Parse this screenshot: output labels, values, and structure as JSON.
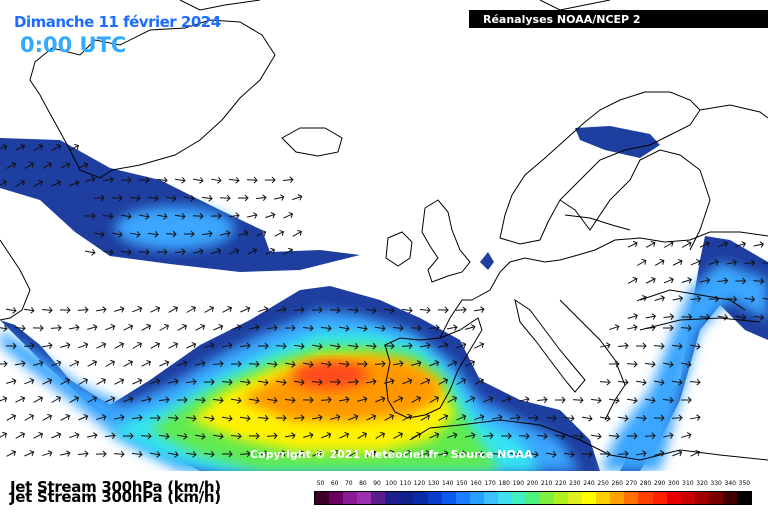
{
  "header": {
    "date": "Dimanche 11 février 2024",
    "time": "0:00 UTC",
    "source": "Réanalyses NOAA/NCEP 2"
  },
  "map": {
    "variable": "Jet Stream 300hPa (km/h)",
    "copyright": "Copyright © 2021 Meteociel.fr - Source NOAA",
    "wind_direction": "west-to-east"
  },
  "legend": {
    "values": [
      "50",
      "60",
      "70",
      "80",
      "90",
      "100",
      "110",
      "120",
      "130",
      "140",
      "150",
      "160",
      "170",
      "180",
      "190",
      "200",
      "210",
      "220",
      "230",
      "240",
      "250",
      "260",
      "270",
      "280",
      "290",
      "300",
      "310",
      "320",
      "330",
      "340",
      "350"
    ],
    "colors": [
      "#3c0028",
      "#6a0060",
      "#8c1a96",
      "#9a2fb4",
      "#5a1e8c",
      "#1e1e8c",
      "#10208c",
      "#0a2ca8",
      "#0a3ccc",
      "#0a5aee",
      "#1b7dff",
      "#2aa0ff",
      "#3cc0ff",
      "#40e0f0",
      "#40f0c0",
      "#50f080",
      "#80f040",
      "#b0f020",
      "#e0f020",
      "#ffff00",
      "#ffd000",
      "#ffa000",
      "#ff7000",
      "#ff4000",
      "#ff2000",
      "#e80000",
      "#c80000",
      "#a00000",
      "#780000",
      "#400000",
      "#000000"
    ],
    "map_colors": {
      "slow": "#1e3ea0",
      "mid": "#3aa6ff",
      "cyan": "#35e4f0",
      "green": "#60ea50",
      "yellow": "#fff200",
      "orange": "#ff9800",
      "red": "#ff4a1a",
      "coast": "#000000"
    }
  }
}
